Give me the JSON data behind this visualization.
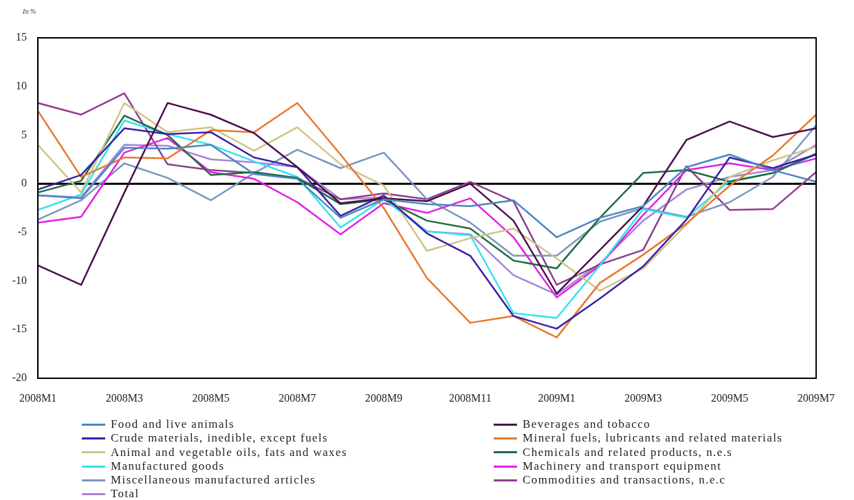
{
  "chart_data": {
    "type": "line",
    "ylabel": "In %",
    "categories": [
      "2008M1",
      null,
      "2008M3",
      null,
      "2008M5",
      null,
      "2008M7",
      null,
      "2008M9",
      null,
      "2008M11",
      null,
      "2009M1",
      null,
      "2009M3",
      null,
      "2009M5",
      null,
      "2009M7"
    ],
    "ylim": [
      -20,
      15
    ],
    "yticks": [
      -20,
      -15,
      -10,
      -5,
      0,
      5,
      10,
      15
    ],
    "legend": "bottom",
    "marker": "none",
    "line_style": "solid",
    "ref_lines": [
      {
        "axis": "y",
        "value": 0,
        "color": "#000000"
      }
    ],
    "series": [
      {
        "name": "Food and live animals",
        "color": "#4a86c0",
        "values": [
          -1.2,
          -1.5,
          3.7,
          3.6,
          4.0,
          1.0,
          0.5,
          -3.5,
          -1.6,
          -2.1,
          -2.3,
          -1.7,
          -5.5,
          -3.5,
          -2.3,
          1.7,
          3.0,
          1.4,
          0.2
        ]
      },
      {
        "name": "Beverages and tobacco",
        "color": "#4a0e4e",
        "values": [
          -8.4,
          -10.4,
          -0.9,
          8.3,
          7.1,
          5.2,
          1.7,
          -2.0,
          -1.5,
          -1.8,
          0.0,
          -3.8,
          -11.3,
          -6.8,
          -2.3,
          4.5,
          6.4,
          4.8,
          5.7
        ]
      },
      {
        "name": "Crude materials, inedible, except fuels",
        "color": "#3b1fa6",
        "values": [
          -0.6,
          0.9,
          5.7,
          5.1,
          5.3,
          2.7,
          1.7,
          -3.3,
          -1.2,
          -5.1,
          -7.4,
          -13.6,
          -14.9,
          -11.8,
          -8.5,
          -3.7,
          2.7,
          1.6,
          3.0
        ]
      },
      {
        "name": "Mineral fuels, lubricants and related materials",
        "color": "#e8772e",
        "values": [
          7.5,
          0.7,
          2.7,
          2.6,
          5.5,
          5.3,
          8.3,
          3.0,
          -2.5,
          -9.7,
          -14.3,
          -13.6,
          -15.8,
          -10.2,
          -7.3,
          -4.1,
          -0.2,
          2.9,
          7.1
        ]
      },
      {
        "name": "Animal and vegetable oils, fats and waxes",
        "color": "#cdc48a",
        "values": [
          4.0,
          -0.9,
          8.3,
          5.3,
          5.8,
          3.4,
          5.8,
          2.0,
          -0.2,
          -6.9,
          -5.6,
          -4.6,
          -7.7,
          -11.0,
          -8.7,
          -4.2,
          0.7,
          2.4,
          3.8
        ]
      },
      {
        "name": "Chemicals and related products, n.e.s",
        "color": "#1e6b40",
        "values": [
          -0.9,
          0.3,
          7.0,
          5.0,
          0.9,
          1.2,
          0.6,
          -2.1,
          -1.6,
          -3.8,
          -4.6,
          -7.9,
          -8.7,
          -3.5,
          1.1,
          1.4,
          0.2,
          1.1,
          3.1
        ]
      },
      {
        "name": "Manufactured goods",
        "color": "#33e2ee",
        "values": [
          -2.7,
          -1.1,
          6.5,
          5.1,
          4.0,
          2.3,
          0.7,
          -4.5,
          -1.6,
          -4.9,
          -5.3,
          -13.3,
          -13.8,
          -8.4,
          -2.6,
          -3.5,
          0.3,
          1.1,
          3.0
        ]
      },
      {
        "name": "Machinery and transport equipment",
        "color": "#e21ee6",
        "values": [
          -4.0,
          -3.4,
          3.2,
          4.7,
          1.2,
          0.5,
          -1.9,
          -5.2,
          -2.0,
          -3.0,
          -1.5,
          -5.5,
          -11.7,
          -8.4,
          -3.2,
          1.4,
          2.1,
          1.4,
          2.6
        ]
      },
      {
        "name": "Miscellaneous manufactured articles",
        "color": "#7797bd",
        "values": [
          -3.7,
          -1.7,
          2.1,
          0.6,
          -1.7,
          1.1,
          3.5,
          1.6,
          3.2,
          -1.6,
          -4.0,
          -7.4,
          -7.4,
          -3.9,
          -2.5,
          -3.4,
          -1.9,
          0.7,
          6.0
        ]
      },
      {
        "name": "Commodities and transactions, n.e.c",
        "color": "#8e3e8e",
        "values": [
          8.3,
          7.1,
          9.3,
          2.0,
          1.4,
          1.1,
          0.6,
          -1.6,
          -1.0,
          -1.6,
          0.2,
          -1.8,
          -10.4,
          -8.3,
          -6.8,
          1.8,
          -2.7,
          -2.6,
          1.2
        ]
      },
      {
        "name": "Total",
        "color": "#a485d6",
        "values": [
          -1.2,
          -1.4,
          4.0,
          3.9,
          2.5,
          2.2,
          1.7,
          -1.6,
          -1.4,
          -4.9,
          -5.2,
          -9.4,
          -11.4,
          -8.2,
          -3.8,
          -0.6,
          0.7,
          1.4,
          4.0
        ]
      }
    ]
  }
}
